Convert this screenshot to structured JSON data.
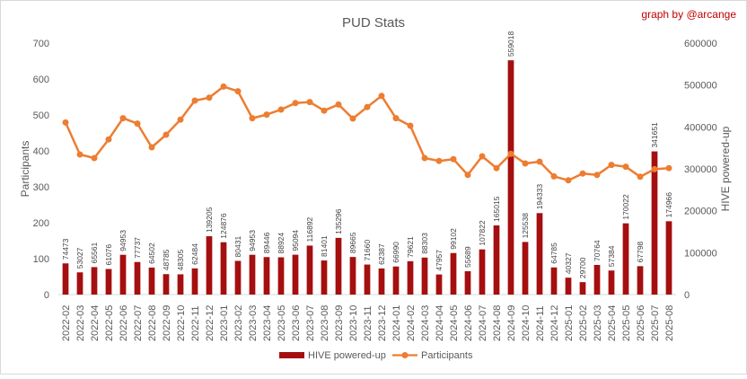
{
  "credit": "graph by @arcange",
  "chart_data": {
    "type": "bar+line",
    "title": "PUD Stats",
    "categories": [
      "2022-02",
      "2022-03",
      "2022-04",
      "2022-05",
      "2022-06",
      "2022-07",
      "2022-08",
      "2022-09",
      "2022-10",
      "2022-11",
      "2022-12",
      "2023-01",
      "2023-02",
      "2023-03",
      "2023-04",
      "2023-05",
      "2023-06",
      "2023-07",
      "2023-08",
      "2023-09",
      "2023-10",
      "2023-11",
      "2023-12",
      "2024-01",
      "2024-02",
      "2024-03",
      "2024-04",
      "2024-05",
      "2024-06",
      "2024-07",
      "2024-08",
      "2024-09",
      "2024-10",
      "2024-11",
      "2024-12",
      "2025-01",
      "2025-02",
      "2025-03",
      "2025-04",
      "2025-05",
      "2025-06",
      "2025-07",
      "2025-08"
    ],
    "ylabel_left": "Participants",
    "ylabel_right": "HIVE powered-up",
    "ylim_left": [
      0,
      700
    ],
    "ylim_right": [
      0,
      600000
    ],
    "yticks_left": [
      "0",
      "100",
      "200",
      "300",
      "400",
      "500",
      "600",
      "700"
    ],
    "yticks_right": [
      "0",
      "100000",
      "200000",
      "300000",
      "400000",
      "500000",
      "600000"
    ],
    "legend_position": "bottom",
    "grid": false,
    "series": [
      {
        "name": "HIVE powered-up",
        "kind": "bar",
        "axis": "right",
        "color": "#a50f0f",
        "values": [
          74473,
          53027,
          65561,
          61076,
          94953,
          77737,
          64502,
          48785,
          48305,
          62484,
          139205,
          124876,
          80431,
          94953,
          89446,
          88924,
          95094,
          116892,
          81401,
          135296,
          89665,
          71660,
          62387,
          66990,
          79621,
          88303,
          47957,
          99102,
          55689,
          107822,
          165015,
          559018,
          125538,
          194333,
          64785,
          40327,
          29700,
          70764,
          57384,
          170022,
          67798,
          341651,
          174966
        ],
        "labels": [
          "74473",
          "53027",
          "65561",
          "61076",
          "94953",
          "77737",
          "64502",
          "48785",
          "48305",
          "62484",
          "139205",
          "124876",
          "80431",
          "94953",
          "89446",
          "88924",
          "95094",
          "116892",
          "81401",
          "135296",
          "89665",
          "71660",
          "62387",
          "66990",
          "79621",
          "88303",
          "47957",
          "99102",
          "55689",
          "107822",
          "165015",
          "559018",
          "125538",
          "194333",
          "64785",
          "40327",
          "29700",
          "70764",
          "57384",
          "170022",
          "67798",
          "341651",
          "174966"
        ]
      },
      {
        "name": "Participants",
        "kind": "line",
        "axis": "left",
        "color": "#ed7d31",
        "values": [
          479,
          390,
          380,
          432,
          491,
          476,
          410,
          445,
          487,
          540,
          548,
          579,
          566,
          491,
          501,
          515,
          533,
          536,
          512,
          529,
          490,
          522,
          553,
          491,
          470,
          380,
          372,
          377,
          333,
          385,
          352,
          392,
          365,
          370,
          329,
          318,
          337,
          333,
          361,
          356,
          328,
          349,
          352
        ]
      }
    ]
  }
}
